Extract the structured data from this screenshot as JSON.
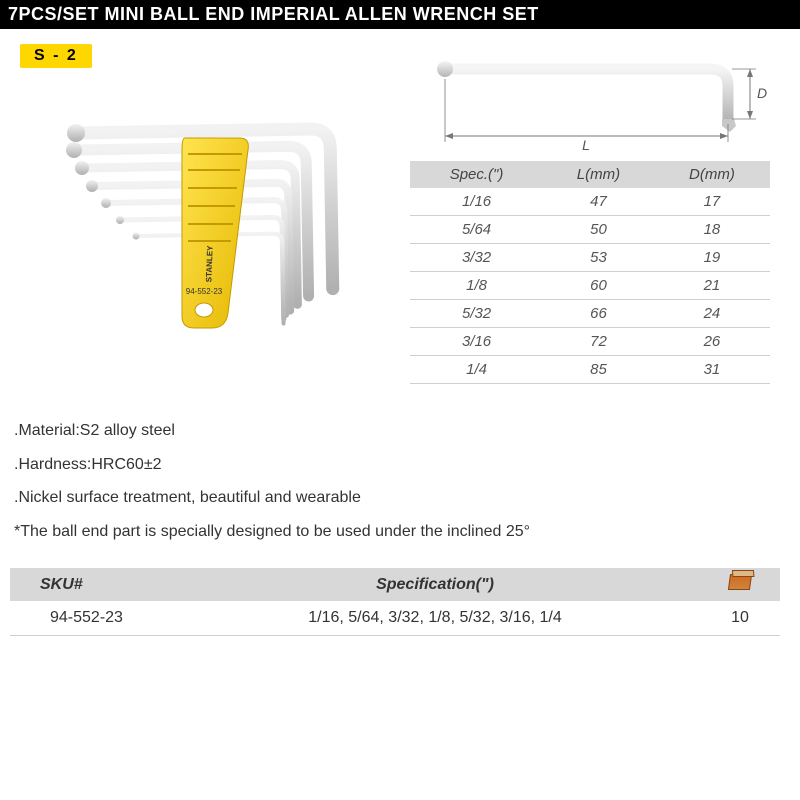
{
  "title": "7PCS/SET MINI BALL END IMPERIAL ALLEN WRENCH SET",
  "badge": "S - 2",
  "product_holder_text": "94-552-23",
  "brand_text": "STANLEY",
  "diagram": {
    "L_label": "L",
    "D_label": "D",
    "wrench_color": "#d8d8d8",
    "ball_color": "#b8b8b8",
    "arrow_color": "#777777"
  },
  "spec_table": {
    "headers": [
      "Spec.(\")",
      "L(mm)",
      "D(mm)"
    ],
    "header_bg": "#d8d8d8",
    "row_border": "#d0d0d0",
    "text_color": "#555555",
    "fontsize": 15,
    "rows": [
      [
        "1/16",
        "47",
        "17"
      ],
      [
        "5/64",
        "50",
        "18"
      ],
      [
        "3/32",
        "53",
        "19"
      ],
      [
        "1/8",
        "60",
        "21"
      ],
      [
        "5/32",
        "66",
        "24"
      ],
      [
        "3/16",
        "72",
        "26"
      ],
      [
        "1/4",
        "85",
        "31"
      ]
    ]
  },
  "bullets": {
    "items": [
      ".Material:S2 alloy steel",
      ".Hardness:HRC60±2",
      ".Nickel surface treatment, beautiful and wearable",
      "*The ball end part is specially designed to be used under the inclined 25°"
    ],
    "fontsize": 16,
    "color": "#333333"
  },
  "sku_table": {
    "headers": [
      "SKU#",
      "Specification(\")",
      "__ICON__"
    ],
    "header_bg": "#d8d8d8",
    "fontsize": 16,
    "rows": [
      [
        "94-552-23",
        "1/16, 5/64, 3/32, 1/8, 5/32, 3/16, 1/4",
        "10"
      ]
    ]
  },
  "colors": {
    "title_bg": "#000000",
    "title_fg": "#ffffff",
    "badge_bg": "#ffd700",
    "badge_fg": "#000000",
    "page_bg": "#ffffff",
    "holder_yellow": "#f7d117",
    "wrench_steel_light": "#e8e8e8",
    "wrench_steel_dark": "#bcbcbc"
  }
}
